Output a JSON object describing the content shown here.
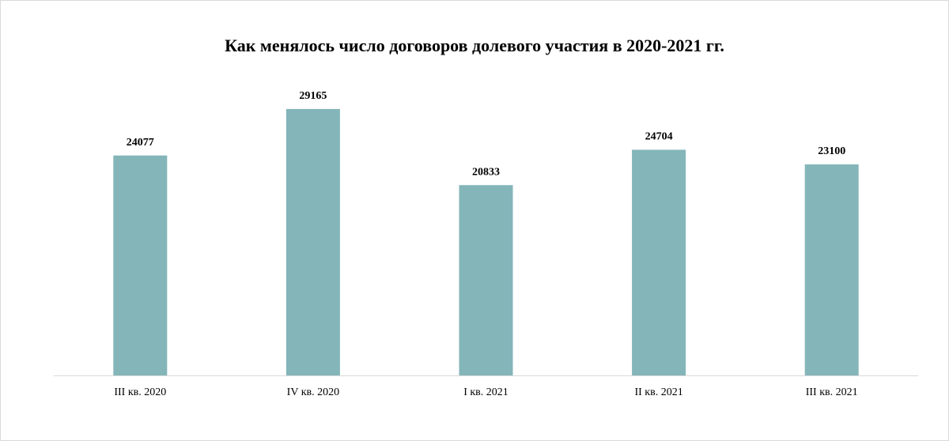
{
  "chart_data": {
    "type": "bar",
    "title": "Как менялось число договоров долевого участия в 2020-2021 гг.",
    "categories": [
      "III кв. 2020",
      "IV кв. 2020",
      "I кв. 2021",
      "II кв. 2021",
      "III кв. 2021"
    ],
    "values": [
      24077,
      29165,
      20833,
      24704,
      23100
    ],
    "color": "#84b5b9",
    "ylim": [
      0,
      35000
    ],
    "grid": false
  }
}
